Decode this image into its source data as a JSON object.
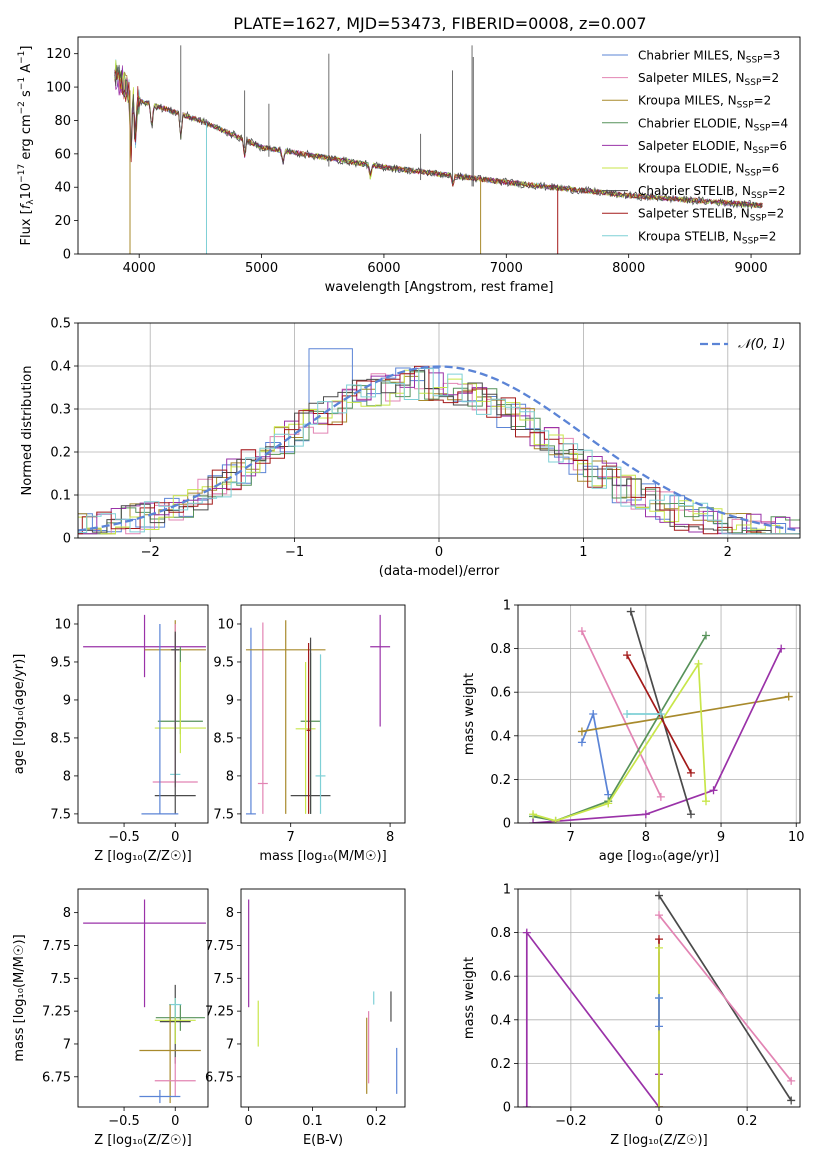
{
  "figure": {
    "title": "PLATE=1627, MJD=53473, FIBERID=0008, z=0.007"
  },
  "series_styles": [
    {
      "name": "Chabrier MILES",
      "nssp": "3",
      "color": "#5b84d6"
    },
    {
      "name": "Salpeter MILES",
      "nssp": "2",
      "color": "#e284b3"
    },
    {
      "name": "Kroupa MILES",
      "nssp": "2",
      "color": "#a88a2c"
    },
    {
      "name": "Chabrier ELODIE",
      "nssp": "4",
      "color": "#57925a"
    },
    {
      "name": "Salpeter ELODIE",
      "nssp": "6",
      "color": "#9a32a8"
    },
    {
      "name": "Kroupa ELODIE",
      "nssp": "6",
      "color": "#c8e64a"
    },
    {
      "name": "Chabrier STELIB",
      "nssp": "2",
      "color": "#4a4a4a"
    },
    {
      "name": "Salpeter STELIB",
      "nssp": "2",
      "color": "#a31a1a"
    },
    {
      "name": "Kroupa STELIB",
      "nssp": "2",
      "color": "#7fd0d6"
    }
  ],
  "chart_data": [
    {
      "id": "spectrum",
      "type": "line",
      "xlabel": "wavelength [Angstrom, rest frame]",
      "ylabel": "Flux [f_λ 10^-17 erg cm^-2 s^-1 A^-1]",
      "xlim": [
        3500,
        9400
      ],
      "ylim": [
        0,
        130
      ],
      "xticks": [
        4000,
        5000,
        6000,
        7000,
        8000,
        9000
      ],
      "yticks": [
        0,
        20,
        40,
        60,
        80,
        100,
        120
      ],
      "legend": "top-right",
      "grid": false,
      "continuum": {
        "x": [
          3800,
          4000,
          4500,
          5000,
          6000,
          7000,
          8000,
          9100
        ],
        "y": [
          108,
          92,
          80,
          64,
          52,
          43,
          35,
          29
        ]
      }
    },
    {
      "id": "residuals",
      "type": "line",
      "xlabel": "(data-model)/error",
      "ylabel": "Normed distribution",
      "xlim": [
        -2.5,
        2.5
      ],
      "ylim": [
        0,
        0.5
      ],
      "xticks": [
        -2,
        -1,
        0,
        1,
        2
      ],
      "yticks": [
        0.0,
        0.1,
        0.2,
        0.3,
        0.4,
        0.5
      ],
      "grid": true,
      "legend": "top-right",
      "reference_label": "𝒩(0, 1)",
      "reference_color": "#5b84d6"
    },
    {
      "id": "z-age",
      "type": "scatter",
      "xlabel": "Z [log₁₀(Z/Z☉)]",
      "ylabel": "age  [log₁₀(age/yr)]",
      "xlim": [
        -0.95,
        0.32
      ],
      "ylim": [
        7.38,
        10.25
      ],
      "xticks": [
        -0.5,
        0.0
      ],
      "yticks": [
        7.5,
        8.0,
        8.5,
        9.0,
        9.5,
        10.0
      ],
      "grid": false,
      "points": [
        {
          "s": 4,
          "x": -0.3,
          "y": 9.7,
          "xerr": 0.6,
          "yerr": [
            9.3,
            10.12
          ]
        },
        {
          "s": 2,
          "x": 0.0,
          "y": 9.66,
          "xerr": 0.3,
          "yerr": [
            9.0,
            10.05
          ]
        },
        {
          "s": 6,
          "x": 0.0,
          "y": 9.66,
          "xerr": 0.04,
          "yerr": [
            9.3,
            9.87
          ]
        },
        {
          "s": 3,
          "x": 0.05,
          "y": 8.72,
          "xerr": 0.22,
          "yerr": [
            8.55,
            9.7
          ]
        },
        {
          "s": 5,
          "x": 0.05,
          "y": 8.63,
          "xerr": 0.25,
          "yerr": [
            8.3,
            9.5
          ]
        },
        {
          "s": 8,
          "x": 0.0,
          "y": 8.02,
          "xerr": 0.05,
          "yerr": [
            7.9,
            9.6
          ]
        },
        {
          "s": 1,
          "x": 0.0,
          "y": 7.92,
          "xerr": 0.22,
          "yerr": [
            7.85,
            10.0
          ]
        },
        {
          "s": 6,
          "x": 0.0,
          "y": 7.74,
          "xerr": 0.2,
          "yerr": [
            7.5,
            9.9
          ]
        },
        {
          "s": 0,
          "x": -0.15,
          "y": 7.5,
          "xerr": 0.18,
          "yerr": [
            7.5,
            10.0
          ]
        }
      ]
    },
    {
      "id": "mass-age",
      "type": "scatter",
      "xlabel": "mass [log₁₀(M/M☉)]",
      "ylabel": "",
      "xlim": [
        6.5,
        8.15
      ],
      "ylim": [
        7.38,
        10.25
      ],
      "xticks": [
        7,
        8
      ],
      "yticks": [
        7.5,
        8.0,
        8.5,
        9.0,
        9.5,
        10.0
      ],
      "grid": false,
      "points": [
        {
          "s": 0,
          "x": 6.6,
          "y": 7.5,
          "xerr": 0.05,
          "yerr": [
            7.5,
            9.95
          ]
        },
        {
          "s": 1,
          "x": 6.72,
          "y": 7.9,
          "xerr": 0.05,
          "yerr": [
            7.5,
            10.02
          ]
        },
        {
          "s": 2,
          "x": 6.95,
          "y": 9.66,
          "xerr": 0.4,
          "yerr": [
            7.5,
            10.05
          ]
        },
        {
          "s": 4,
          "x": 7.9,
          "y": 9.7,
          "xerr": 0.1,
          "yerr": [
            8.65,
            10.12
          ]
        },
        {
          "s": 3,
          "x": 7.2,
          "y": 8.72,
          "xerr": 0.1,
          "yerr": [
            7.5,
            9.62
          ]
        },
        {
          "s": 5,
          "x": 7.15,
          "y": 8.62,
          "xerr": 0.1,
          "yerr": [
            7.5,
            9.5
          ]
        },
        {
          "s": 6,
          "x": 7.2,
          "y": 7.74,
          "xerr": 0.2,
          "yerr": [
            7.5,
            9.82
          ]
        },
        {
          "s": 8,
          "x": 7.3,
          "y": 8.0,
          "xerr": 0.05,
          "yerr": [
            7.5,
            9.6
          ]
        },
        {
          "s": 7,
          "x": 7.18,
          "y": 8.6,
          "xerr": 0.02,
          "yerr": [
            7.5,
            9.75
          ]
        }
      ]
    },
    {
      "id": "age-weight",
      "type": "line",
      "xlabel": "age  [log₁₀(age/yr)]",
      "ylabel": "mass weight",
      "xlim": [
        6.3,
        10.05
      ],
      "ylim": [
        0,
        1
      ],
      "xticks": [
        7,
        8,
        9,
        10
      ],
      "yticks": [
        0.0,
        0.2,
        0.4,
        0.6,
        0.8,
        1.0
      ],
      "grid": true,
      "series": [
        {
          "s": 0,
          "x": [
            7.15,
            7.3,
            7.5
          ],
          "y": [
            0.37,
            0.5,
            0.13
          ]
        },
        {
          "s": 1,
          "x": [
            7.15,
            8.2
          ],
          "y": [
            0.88,
            0.12
          ]
        },
        {
          "s": 2,
          "x": [
            7.15,
            9.9
          ],
          "y": [
            0.42,
            0.58
          ]
        },
        {
          "s": 3,
          "x": [
            6.5,
            6.8,
            7.5,
            8.8
          ],
          "y": [
            0.03,
            0.01,
            0.1,
            0.86
          ]
        },
        {
          "s": 4,
          "x": [
            6.5,
            8.0,
            8.9,
            9.8
          ],
          "y": [
            0.0,
            0.04,
            0.15,
            0.8
          ]
        },
        {
          "s": 5,
          "x": [
            6.5,
            6.8,
            7.5,
            8.7,
            8.8
          ],
          "y": [
            0.04,
            0.01,
            0.09,
            0.73,
            0.1
          ]
        },
        {
          "s": 6,
          "x": [
            7.8,
            8.6
          ],
          "y": [
            0.97,
            0.04
          ]
        },
        {
          "s": 7,
          "x": [
            7.75,
            8.6
          ],
          "y": [
            0.77,
            0.23
          ]
        },
        {
          "s": 8,
          "x": [
            7.75,
            8.2
          ],
          "y": [
            0.5,
            0.5
          ]
        }
      ]
    },
    {
      "id": "z-mass",
      "type": "scatter",
      "xlabel": "Z [log₁₀(Z/Z☉)]",
      "ylabel": "mass [log₁₀(M/M☉)]",
      "xlim": [
        -0.95,
        0.32
      ],
      "ylim": [
        6.52,
        8.18
      ],
      "xticks": [
        -0.5,
        0.0
      ],
      "yticks": [
        6.75,
        7.0,
        7.25,
        7.5,
        7.75,
        8.0
      ],
      "grid": false,
      "points": [
        {
          "s": 4,
          "x": -0.3,
          "y": 7.92,
          "xerr": 0.6,
          "yerr": [
            7.28,
            8.1
          ]
        },
        {
          "s": 3,
          "x": 0.05,
          "y": 7.2,
          "xerr": 0.24,
          "yerr": [
            7.1,
            7.3
          ]
        },
        {
          "s": 6,
          "x": 0.0,
          "y": 7.17,
          "xerr": 0.15,
          "yerr": [
            6.85,
            7.45
          ]
        },
        {
          "s": 5,
          "x": 0.0,
          "y": 7.18,
          "xerr": 0.2,
          "yerr": [
            7.0,
            7.35
          ]
        },
        {
          "s": 8,
          "x": 0.0,
          "y": 7.3,
          "xerr": 0.06,
          "yerr": [
            7.2,
            7.35
          ]
        },
        {
          "s": 2,
          "x": -0.05,
          "y": 6.95,
          "xerr": 0.3,
          "yerr": [
            6.55,
            7.3
          ]
        },
        {
          "s": 1,
          "x": 0.0,
          "y": 6.72,
          "xerr": 0.2,
          "yerr": [
            6.6,
            6.9
          ]
        },
        {
          "s": 0,
          "x": -0.15,
          "y": 6.6,
          "xerr": 0.2,
          "yerr": [
            6.55,
            6.65
          ]
        }
      ]
    },
    {
      "id": "ebv-mass",
      "type": "scatter",
      "xlabel": "E(B-V)",
      "ylabel": "",
      "xlim": [
        -0.012,
        0.245
      ],
      "ylim": [
        6.52,
        8.18
      ],
      "xticks": [
        0.0,
        0.1,
        0.2
      ],
      "yticks": [
        6.75,
        7.0,
        7.25,
        7.5,
        7.75,
        8.0
      ],
      "grid": false,
      "points": [
        {
          "s": 4,
          "x": 0.0,
          "y": 7.92,
          "yerr": [
            7.28,
            8.1
          ]
        },
        {
          "s": 5,
          "x": 0.015,
          "y": 7.15,
          "yerr": [
            6.98,
            7.33
          ]
        },
        {
          "s": 2,
          "x": 0.185,
          "y": 6.9,
          "yerr": [
            6.62,
            7.2
          ]
        },
        {
          "s": 1,
          "x": 0.188,
          "y": 7.0,
          "yerr": [
            6.7,
            7.25
          ]
        },
        {
          "s": 8,
          "x": 0.196,
          "y": 7.36,
          "yerr": [
            7.3,
            7.4
          ]
        },
        {
          "s": 6,
          "x": 0.223,
          "y": 7.28,
          "yerr": [
            7.17,
            7.4
          ]
        },
        {
          "s": 0,
          "x": 0.232,
          "y": 6.77,
          "yerr": [
            6.62,
            6.97
          ]
        }
      ]
    },
    {
      "id": "z-weight",
      "type": "line",
      "xlabel": "Z [log₁₀(Z/Z☉)]",
      "ylabel": "mass weight",
      "xlim": [
        -0.32,
        0.32
      ],
      "ylim": [
        0,
        1
      ],
      "xticks": [
        -0.2,
        0.0,
        0.2
      ],
      "yticks": [
        0.0,
        0.2,
        0.4,
        0.6,
        0.8,
        1.0
      ],
      "grid": true,
      "series": [
        {
          "s": 4,
          "x": [
            -0.3,
            -0.3,
            0.0,
            0.0
          ],
          "y": [
            0.0,
            0.8,
            0.0,
            0.15
          ]
        },
        {
          "s": 6,
          "x": [
            0.0,
            0.3
          ],
          "y": [
            0.97,
            0.03
          ]
        },
        {
          "s": 1,
          "x": [
            0.0,
            0.3
          ],
          "y": [
            0.88,
            0.12
          ]
        },
        {
          "s": 7,
          "x": [
            0.0,
            0.0
          ],
          "y": [
            0.0,
            0.77
          ]
        },
        {
          "s": 5,
          "x": [
            0.0,
            0.0
          ],
          "y": [
            0.0,
            0.73
          ]
        },
        {
          "s": 8,
          "x": [
            0.0,
            0.0
          ],
          "y": [
            0.5,
            0.5
          ]
        },
        {
          "s": 0,
          "x": [
            0.0,
            0.0
          ],
          "y": [
            0.37,
            0.5
          ]
        }
      ]
    }
  ]
}
